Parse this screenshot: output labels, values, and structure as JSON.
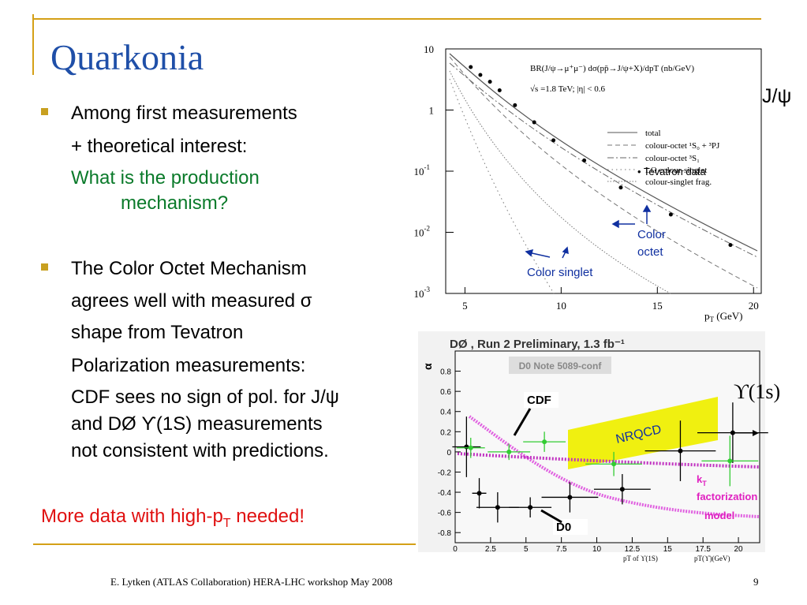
{
  "header": {
    "title": "Quarkonia"
  },
  "body": {
    "lines": [
      "Among first measurements",
      "+ theoretical interest:",
      "What is the production",
      "mechanism?",
      "The Color Octet Mechanism",
      "agrees well with measured σ",
      "shape from Tevatron",
      "Polarization measurements:",
      "CDF sees no sign of pol. for J/ψ",
      "and DØ ϒ(1S) measurements",
      "not consistent with predictions."
    ],
    "conclusion": [
      "More data with high-p",
      "T",
      " needed!"
    ]
  },
  "jpsi_plot": {
    "label": "J/ψ",
    "title": "BR(J/ψ→μ⁺μ⁻) dσ(pp̄→J/ψ+X)/dpT (nb/GeV)",
    "energy": "√s =1.8 TeV; |η| < 0.6",
    "xlabel": [
      "p",
      "T",
      " (GeV)"
    ],
    "legend": [
      "total",
      "colour-octet ¹S₀ + ³PJ",
      "colour-octet ³S₁",
      "LO colour-singlet",
      "colour-singlet frag."
    ],
    "data_label": "• Tevatron data",
    "octet_label": [
      "Color",
      "octet"
    ],
    "singlet_label": "Color singlet",
    "log": true,
    "xlim": [
      4,
      20.4
    ],
    "ylim": [
      0.001,
      10
    ],
    "xticks": [
      5,
      10,
      15,
      20
    ],
    "yticks": [
      {
        "value": 10,
        "label": "10"
      },
      {
        "value": 1,
        "label": "1"
      },
      {
        "value": 0.1,
        "label": "10",
        "sup": "-1"
      },
      {
        "value": 0.01,
        "label": "10",
        "sup": "-2"
      },
      {
        "value": 0.001,
        "label": "10",
        "sup": "-3"
      }
    ],
    "points": {
      "x": [
        5.3,
        5.8,
        6.3,
        6.8,
        7.6,
        8.6,
        9.6,
        11.2,
        13.1,
        15.7,
        18.8
      ],
      "y": [
        5.05,
        3.75,
        2.9,
        2.1,
        1.2,
        0.63,
        0.32,
        0.15,
        0.054,
        0.0195,
        0.0062
      ]
    }
  },
  "upsilon_plot": {
    "label": "ϒ(1s)",
    "title": "DØ , Run 2 Preliminary, 1.3 fb⁻¹",
    "note": "D0 Note 5089-conf",
    "ylabel": "α",
    "xlabel": [
      "pT of ϒ(1S)",
      "pT(ϒ)(GeV)"
    ],
    "nrqcd_label": "NRQCD",
    "kt_label": {
      "main": "k",
      "sub": "T",
      "line2": "factorization",
      "line3": "model"
    },
    "xlim": [
      0,
      21.5
    ],
    "ylim": [
      -0.9,
      1.0
    ],
    "xticks": [
      0,
      2.5,
      5,
      7.5,
      10,
      12.5,
      15,
      17.5,
      20
    ],
    "yticks": [
      0.8,
      0.6,
      0.4,
      0.2,
      0,
      -0.2,
      -0.4,
      -0.6,
      -0.8
    ],
    "series": [
      {
        "name": "D0",
        "color": "#000000",
        "x": [
          0.8,
          1.7,
          3,
          5.3,
          8.1,
          11.8,
          15.9,
          19.6
        ],
        "y": [
          0.05,
          -0.41,
          -0.55,
          -0.55,
          -0.45,
          -0.37,
          0.01,
          0.19
        ],
        "xerr": [
          1,
          0.5,
          1.5,
          1.5,
          2,
          2,
          2.5,
          2.5
        ],
        "yerr": [
          0.3,
          0.15,
          0.15,
          0.1,
          0.15,
          0.15,
          0.3,
          0.3
        ]
      },
      {
        "name": "CDF",
        "color": "#33cc33",
        "x": [
          1.1,
          3.8,
          6.3,
          11.2,
          19.4
        ],
        "y": [
          0.04,
          0.0,
          0.1,
          -0.12,
          -0.09
        ],
        "xerr": [
          1,
          1.5,
          1.5,
          2,
          2
        ],
        "yerr": [
          0.1,
          0.08,
          0.1,
          0.12,
          0.25
        ]
      }
    ]
  },
  "footer": {
    "text": "E. Lytken  (ATLAS Collaboration) HERA-LHC workshop May 2008",
    "page": "9"
  }
}
